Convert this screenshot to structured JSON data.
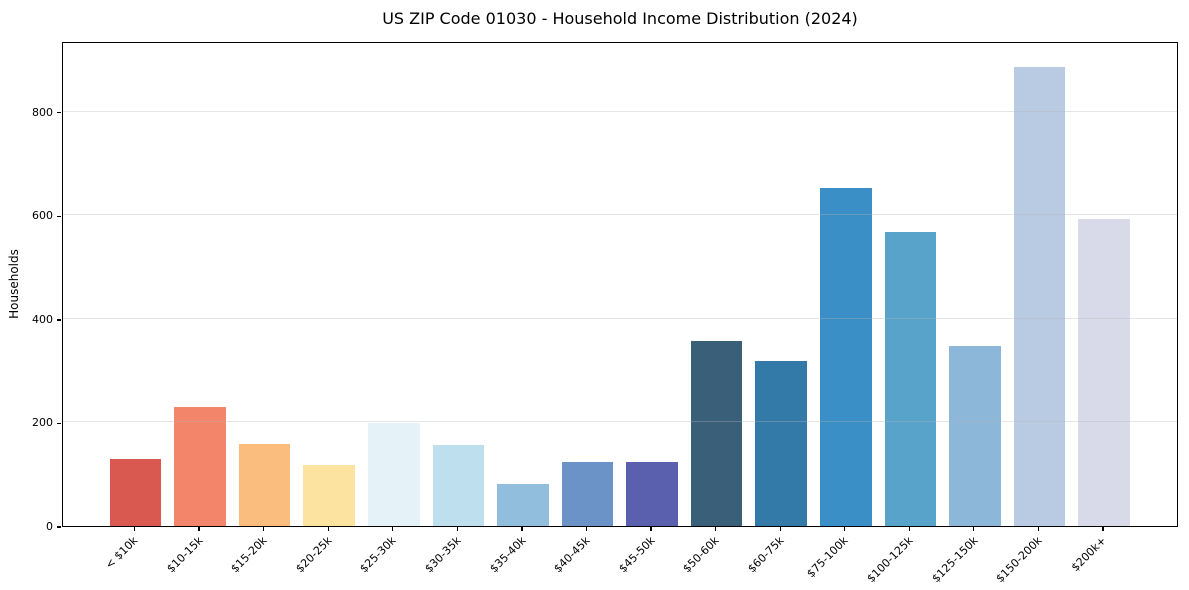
{
  "figure": {
    "background": "#ffffff",
    "spine_color": "#000000",
    "grid_color": "#e9e9e9"
  },
  "chart_data": {
    "type": "bar",
    "title": "US ZIP Code 01030 - Household Income Distribution (2024)",
    "xlabel": "",
    "ylabel": "Households",
    "categories": [
      "< $10k",
      "$10-15k",
      "$15-20k",
      "$20-25k",
      "$25-30k",
      "$30-35k",
      "$35-40k",
      "$40-45k",
      "$45-50k",
      "$50-60k",
      "$60-75k",
      "$75-100k",
      "$100-125k",
      "$125-150k",
      "$150-200k",
      "$200k+"
    ],
    "values": [
      130,
      230,
      159,
      118,
      199,
      156,
      81,
      124,
      124,
      357,
      319,
      653,
      568,
      347,
      887,
      593
    ],
    "bar_colors": [
      "#d9584f",
      "#f3866a",
      "#fbbd7d",
      "#fce3a0",
      "#e5f3f9",
      "#bedfee",
      "#92bedd",
      "#6b93c8",
      "#5a5fae",
      "#3a5f78",
      "#337aa8",
      "#398fc6",
      "#57a3c9",
      "#8db7d9",
      "#b9cbe3",
      "#d9dae9"
    ],
    "yticks": [
      0,
      200,
      400,
      600,
      800
    ],
    "ylim": [
      0,
      937
    ],
    "grid": "horizontal",
    "legend": "none"
  }
}
